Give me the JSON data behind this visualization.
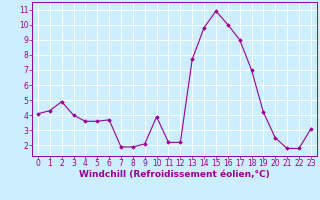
{
  "x": [
    0,
    1,
    2,
    3,
    4,
    5,
    6,
    7,
    8,
    9,
    10,
    11,
    12,
    13,
    14,
    15,
    16,
    17,
    18,
    19,
    20,
    21,
    22,
    23
  ],
  "y": [
    4.1,
    4.3,
    4.9,
    4.0,
    3.6,
    3.6,
    3.7,
    1.9,
    1.9,
    2.1,
    3.9,
    2.2,
    2.2,
    7.7,
    9.8,
    10.9,
    10.0,
    9.0,
    7.0,
    4.2,
    2.5,
    1.8,
    1.8,
    3.1
  ],
  "line_color": "#990099",
  "marker": "D",
  "marker_size": 1.8,
  "bg_color": "#cceeff",
  "grid_color": "#ffffff",
  "xlabel": "Windchill (Refroidissement éolien,°C)",
  "xlabel_color": "#990099",
  "tick_color": "#990099",
  "spine_color": "#990099",
  "xlim": [
    -0.5,
    23.5
  ],
  "ylim": [
    1.3,
    11.5
  ],
  "yticks": [
    2,
    3,
    4,
    5,
    6,
    7,
    8,
    9,
    10,
    11
  ],
  "xticks": [
    0,
    1,
    2,
    3,
    4,
    5,
    6,
    7,
    8,
    9,
    10,
    11,
    12,
    13,
    14,
    15,
    16,
    17,
    18,
    19,
    20,
    21,
    22,
    23
  ],
  "tick_fontsize": 5.5,
  "xlabel_fontsize": 6.5,
  "linewidth": 0.8
}
